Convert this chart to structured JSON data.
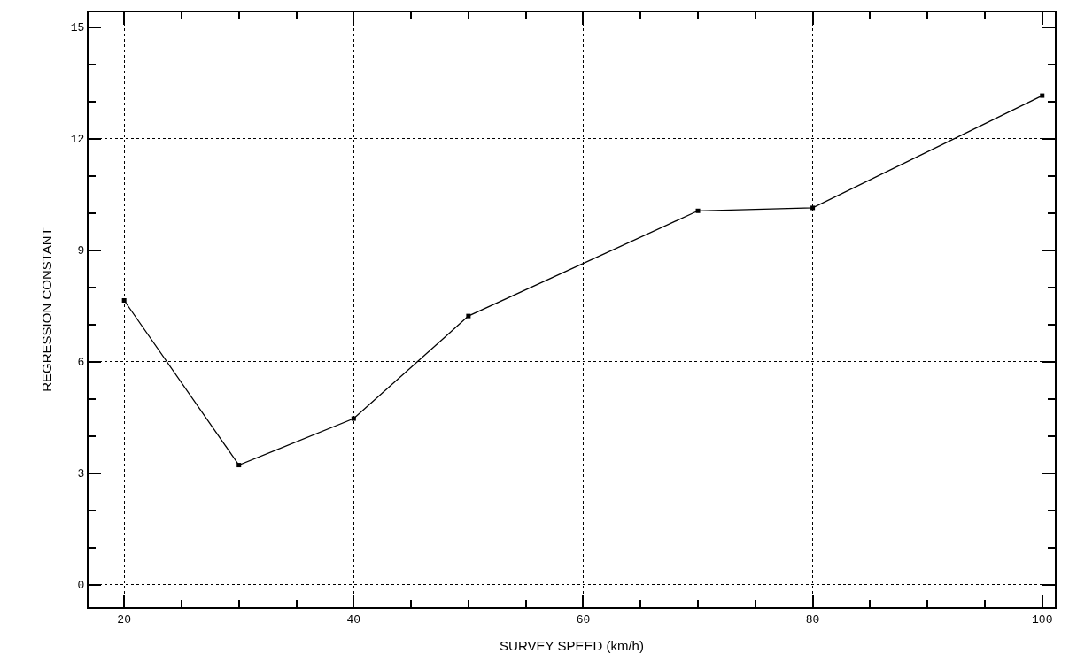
{
  "chart_data": {
    "type": "line",
    "xlabel": "SURVEY SPEED (km/h)",
    "ylabel": "REGRESSION CONSTANT",
    "x": [
      20,
      30,
      40,
      50,
      70,
      80,
      100
    ],
    "series": [
      {
        "color": "#000000",
        "values": [
          7.65,
          3.22,
          4.47,
          7.23,
          10.06,
          10.14,
          13.16
        ]
      }
    ],
    "xlim": [
      16.9,
      101.1
    ],
    "xticks": [
      20,
      {
        "value": 25,
        "label": null
      },
      {
        "value": 30,
        "label": null
      },
      {
        "value": 35,
        "label": null
      },
      40,
      {
        "value": 45,
        "label": null
      },
      {
        "value": 50,
        "label": null
      },
      {
        "value": 55,
        "label": null
      },
      60,
      {
        "value": 65,
        "label": null
      },
      {
        "value": 70,
        "label": null
      },
      {
        "value": 75,
        "label": null
      },
      80,
      {
        "value": 85,
        "label": null
      },
      {
        "value": 90,
        "label": null
      },
      {
        "value": 95,
        "label": null
      },
      100
    ],
    "ylim": [
      -0.6,
      15.4
    ],
    "yticks": [
      0,
      {
        "value": 1,
        "label": null
      },
      {
        "value": 2,
        "label": null
      },
      3,
      {
        "value": 4,
        "label": null
      },
      {
        "value": 5,
        "label": null
      },
      6,
      {
        "value": 7,
        "label": null
      },
      {
        "value": 8,
        "label": null
      },
      9,
      {
        "value": 10,
        "label": null
      },
      {
        "value": 11,
        "label": null
      },
      12,
      {
        "value": 13,
        "label": null
      },
      {
        "value": 14,
        "label": null
      },
      15
    ],
    "grid": true,
    "marker": "square",
    "line_style": "solid"
  }
}
